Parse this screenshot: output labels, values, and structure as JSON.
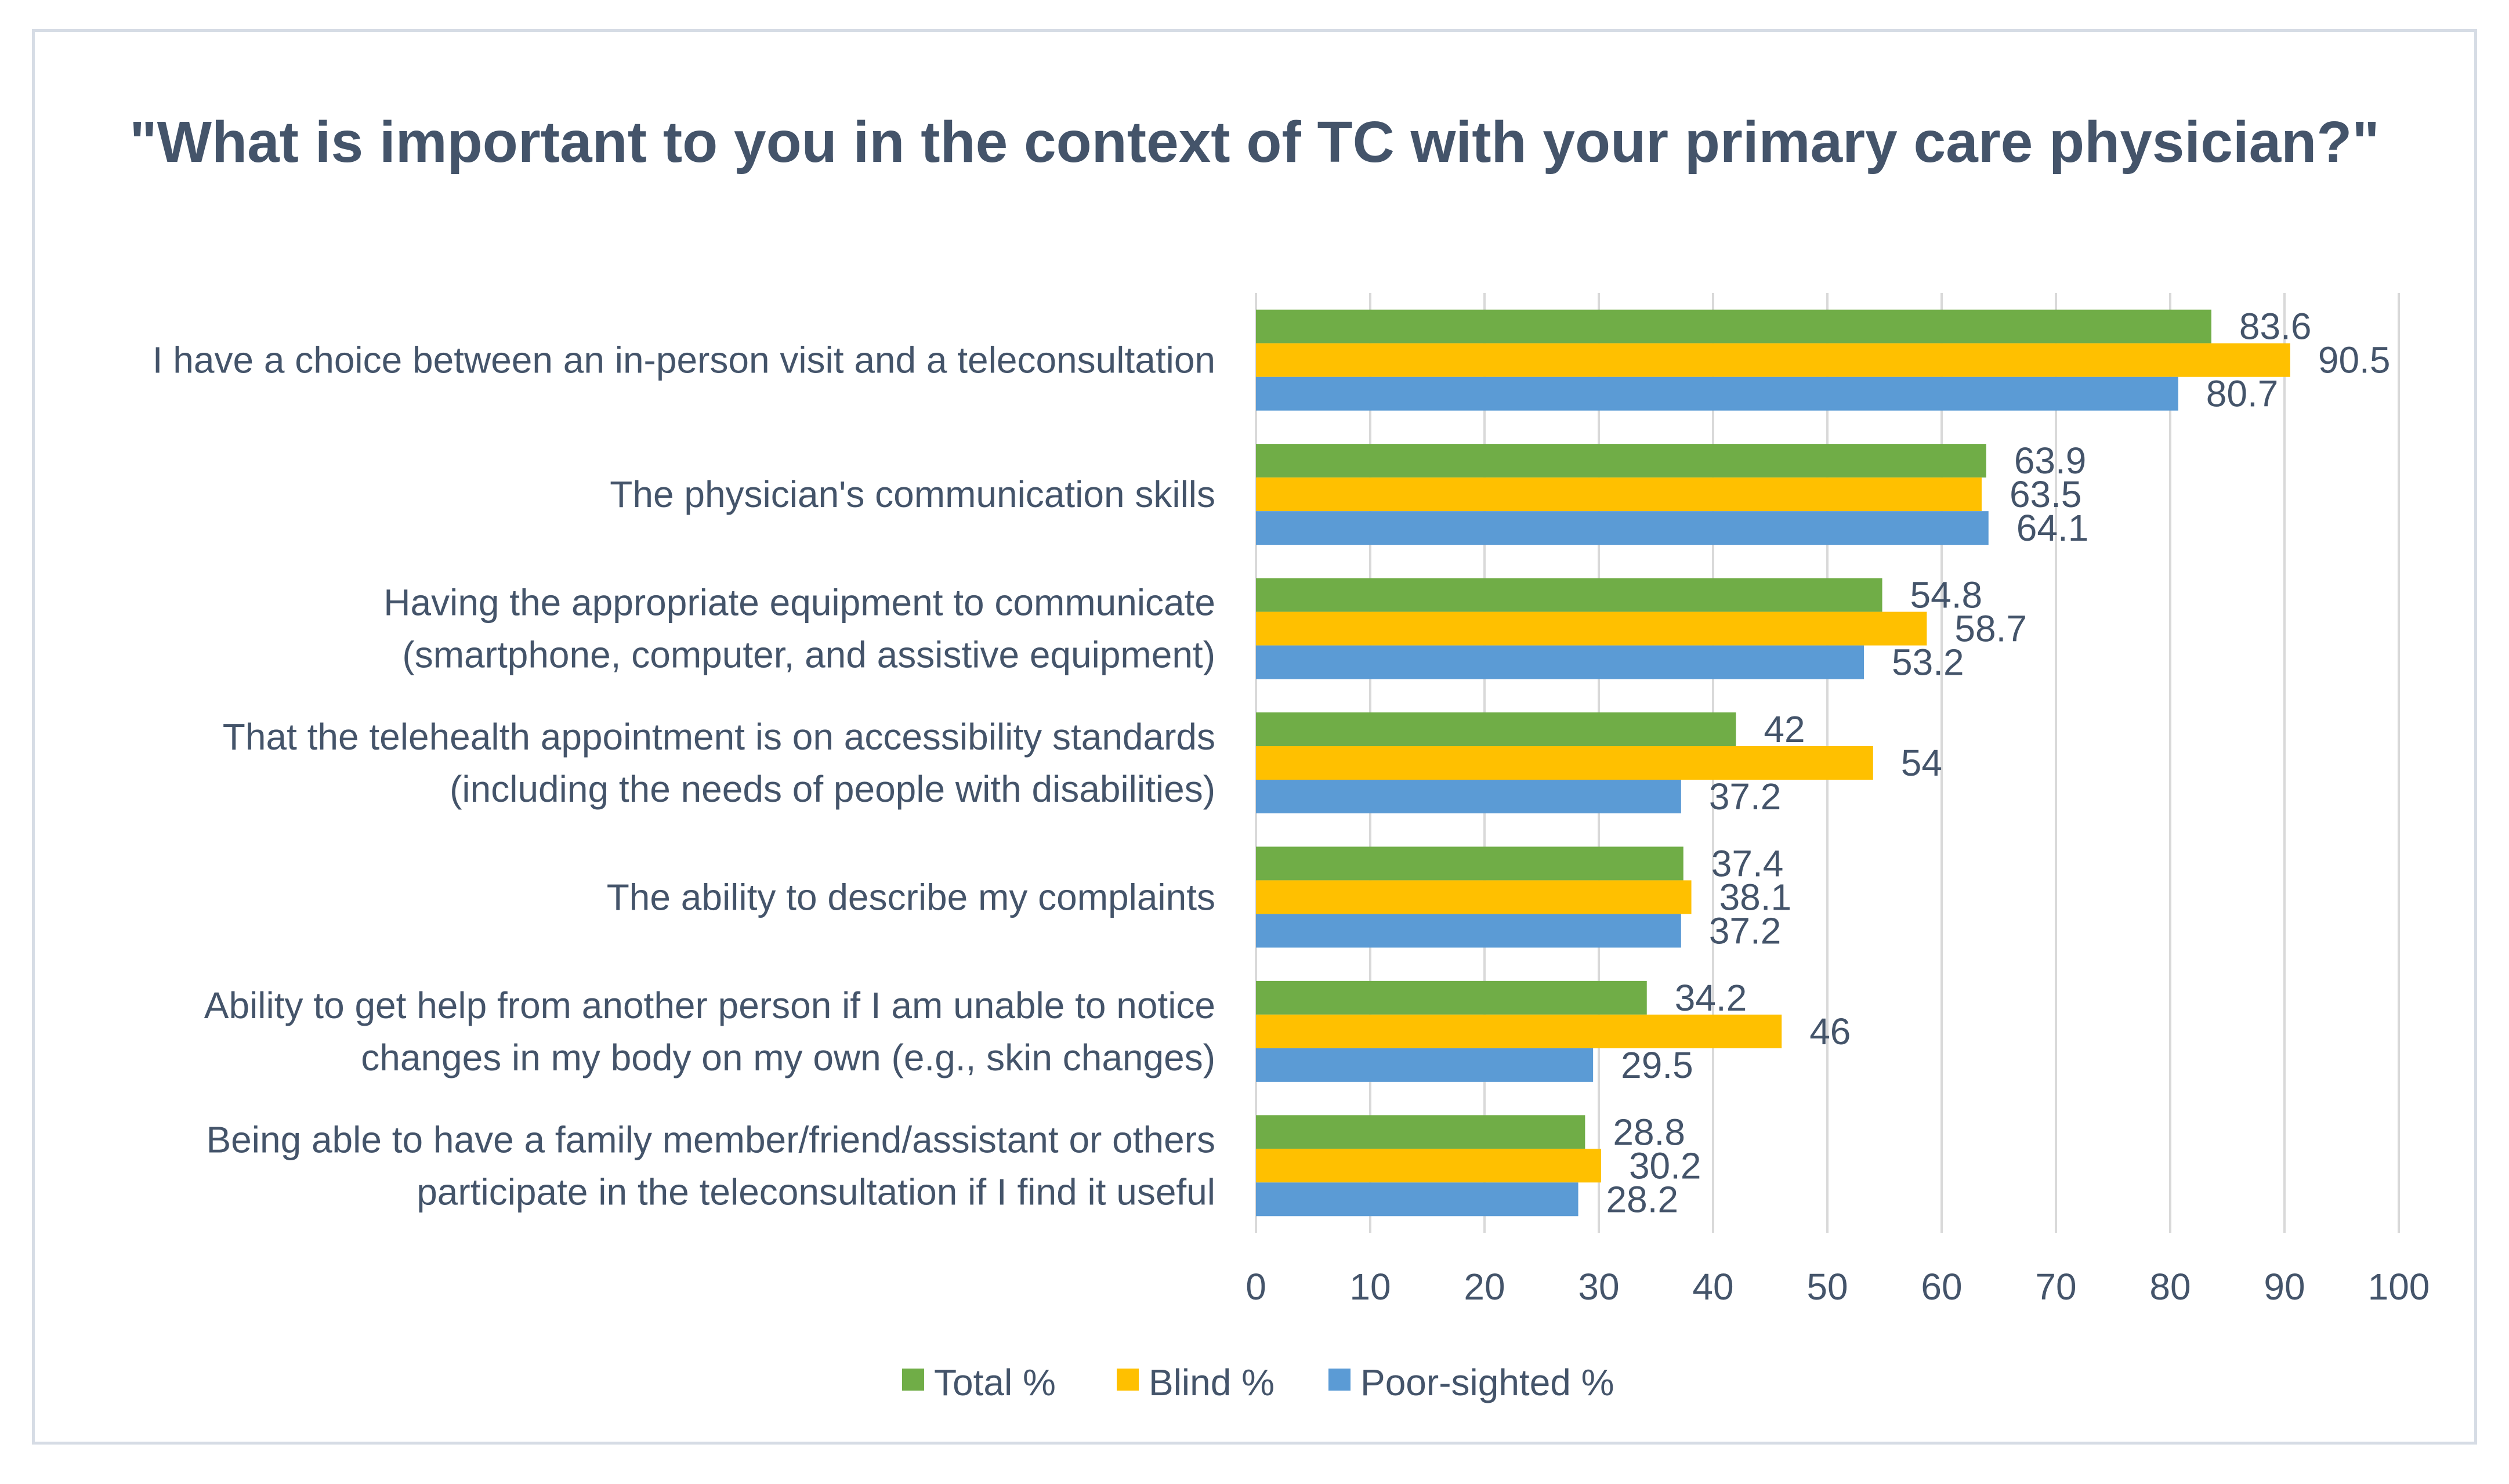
{
  "chart_data": {
    "type": "bar",
    "orientation": "horizontal",
    "title": "\"What is important to you in the context of TC with your primary care physician?\"",
    "categories": [
      [
        "I have a choice between an in-person visit and a teleconsultation"
      ],
      [
        "The physician's communication skills"
      ],
      [
        "Having the appropriate equipment to communicate",
        "(smartphone, computer, and assistive equipment)"
      ],
      [
        "That the telehealth appointment is on accessibility standards",
        "(including the needs of people with disabilities)"
      ],
      [
        "The ability to describe my complaints"
      ],
      [
        "Ability to get help from another person if I am unable to notice",
        "changes in my body on my own (e.g., skin changes)"
      ],
      [
        "Being able to have a family member/friend/assistant or others",
        "participate in the teleconsultation if I find it useful"
      ]
    ],
    "series": [
      {
        "name": "Total %",
        "color": "#70ad47",
        "values": [
          83.6,
          63.9,
          54.8,
          42,
          37.4,
          34.2,
          28.8
        ]
      },
      {
        "name": "Blind %",
        "color": "#ffc000",
        "values": [
          90.5,
          63.5,
          58.7,
          54,
          38.1,
          46,
          30.2
        ]
      },
      {
        "name": "Poor-sighted %",
        "color": "#5b9bd5",
        "values": [
          80.7,
          64.1,
          53.2,
          37.2,
          37.2,
          29.5,
          28.2
        ]
      }
    ],
    "xlim": [
      0,
      100
    ],
    "xticks": [
      "0",
      "10",
      "20",
      "30",
      "40",
      "50",
      "60",
      "70",
      "80",
      "90",
      "100"
    ],
    "grid": true,
    "legend": "bottom"
  }
}
